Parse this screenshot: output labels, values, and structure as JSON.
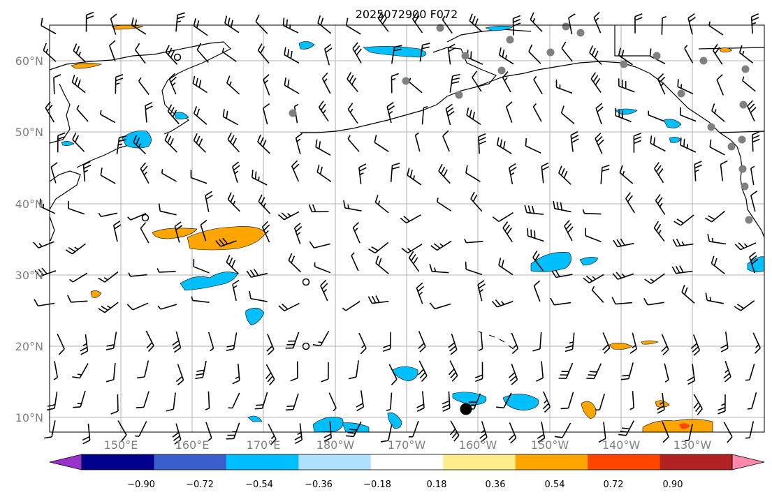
{
  "title": "2025072900 F072",
  "map": {
    "lat_labels": [
      "60°N",
      "50°N",
      "40°N",
      "30°N",
      "20°N",
      "10°N"
    ],
    "lon_labels": [
      "150°E",
      "160°E",
      "170°E",
      "180°W",
      "170°W",
      "160°W",
      "150°W",
      "140°W",
      "130°W"
    ]
  },
  "colorbar": {
    "labels": [
      "−0.90",
      "−0.72",
      "−0.54",
      "−0.36",
      "−0.18",
      "0.18",
      "0.36",
      "0.54",
      "0.72",
      "0.90"
    ],
    "colors": [
      "#9932cc",
      "#00008b",
      "#3a5fcd",
      "#00bfff",
      "#b0e2ff",
      "#ffffff",
      "#ffec8b",
      "#ffa500",
      "#ff4500",
      "#b22222",
      "#ff88aa"
    ],
    "extend": "both"
  },
  "legend_colors": {
    "negative_fill": "#00bfff",
    "positive_fill": "#ffa500"
  }
}
